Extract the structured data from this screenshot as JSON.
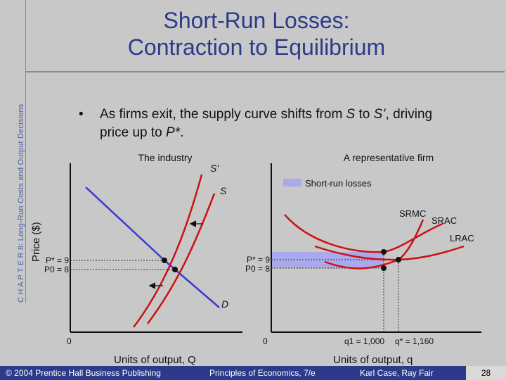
{
  "slide": {
    "title_line1": "Short-Run Losses:",
    "title_line2": "Contraction to Equilibrium",
    "side_label": "C H A P T E R 8: Long-Run Costs and Output Decisions",
    "bullet_marker": "•",
    "bullet_part1": "As firms exit, the supply curve shifts from ",
    "bullet_S": "S",
    "bullet_part2": " to ",
    "bullet_S2": "S’",
    "bullet_part3": ", driving price up to ",
    "bullet_P": "P*",
    "bullet_part4": "."
  },
  "industry": {
    "panel_title": "The industry",
    "y_label": "Price ($)",
    "x_label": "Units of output, Q",
    "origin": "0",
    "price_high": "P* = 9",
    "price_low": "P0 = 8",
    "curve_S_prime": "S'",
    "curve_S": "S",
    "curve_D": "D"
  },
  "firm": {
    "panel_title": "A representative firm",
    "legend_label": "Short-run losses",
    "x_label": "Units of output, q",
    "origin": "0",
    "price_high": "P* = 9",
    "price_low": "P0 = 8",
    "curve_SRMC": "SRMC",
    "curve_SRAC": "SRAC",
    "curve_LRAC": "LRAC",
    "q1_label": "q1 = 1,000",
    "qstar_label": "q* = 1,160"
  },
  "footer": {
    "copyright": "© 2004 Prentice Hall Business Publishing",
    "book": "Principles of Economics, 7/e",
    "authors": "Karl Case, Ray Fair",
    "page": "28"
  },
  "colors": {
    "title": "#2b3a8a",
    "background": "#c8c8c8",
    "supply": "#cc1111",
    "demand": "#3a3ad0",
    "losses_fill": "#a9a9ec",
    "footer": "#2b3a8a"
  }
}
